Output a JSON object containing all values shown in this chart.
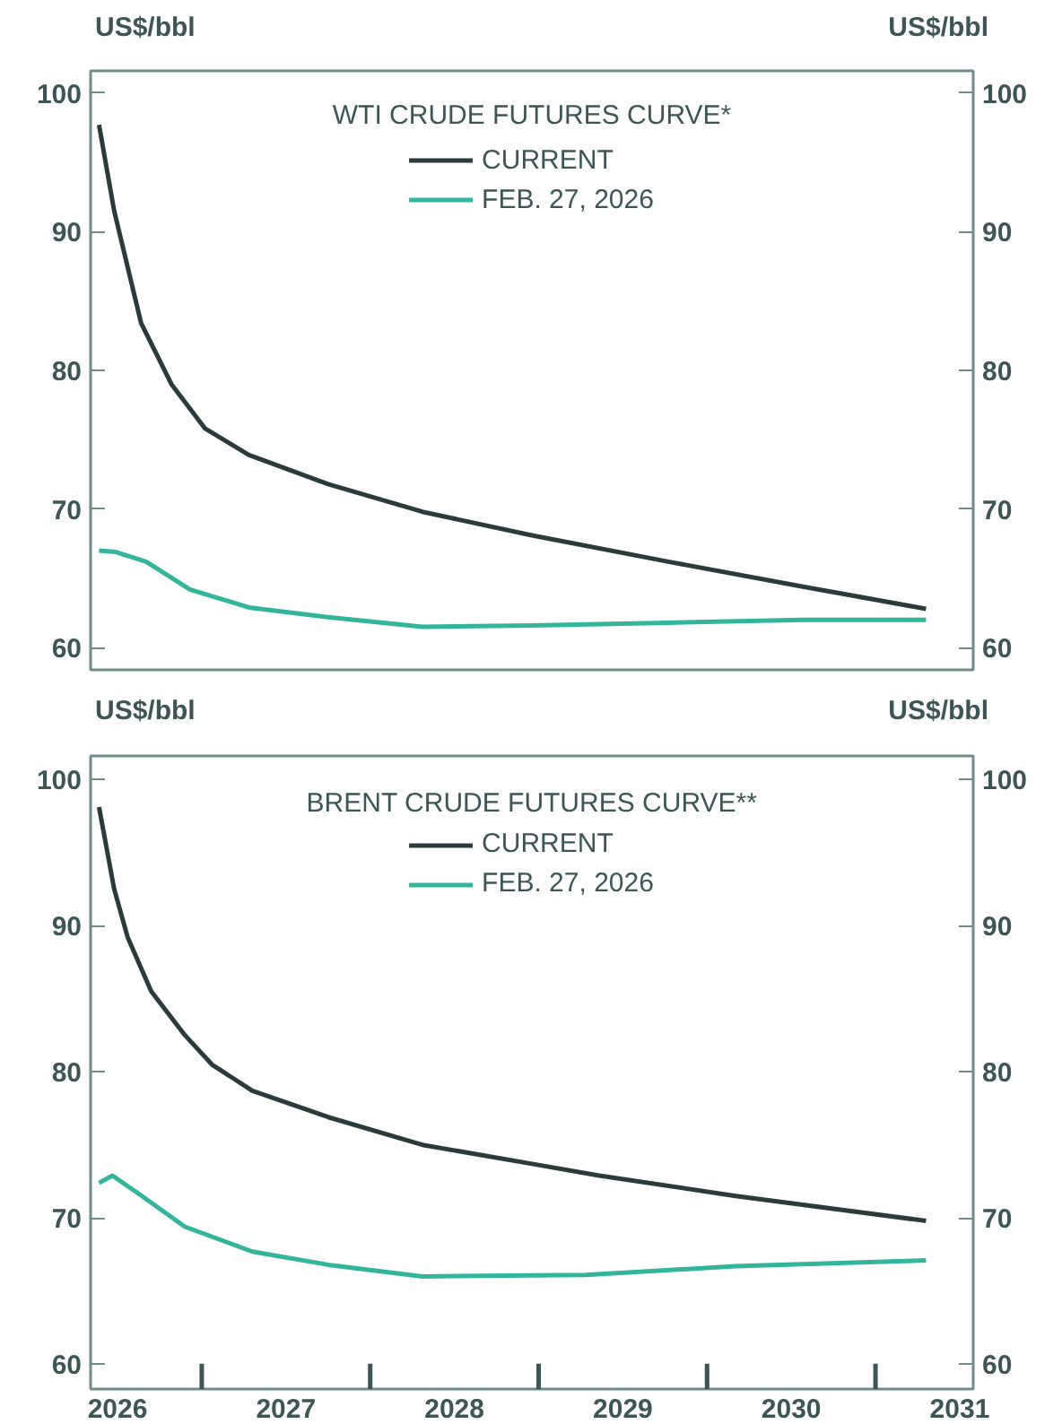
{
  "chart_data": [
    {
      "type": "line",
      "title": "WTI CRUDE FUTURES CURVE*",
      "ylabel": "US$/bbl",
      "y2label": "US$/bbl",
      "xlim": [
        2025.84,
        2031.08
      ],
      "ylim": [
        58.4,
        101.6
      ],
      "yticks": [
        60,
        70,
        80,
        90,
        100
      ],
      "y2lim": [
        58.4,
        101.6
      ],
      "y2ticks": [
        60,
        70,
        80,
        90,
        100
      ],
      "tick_labels": "y",
      "grid": false,
      "legend": "top",
      "line_style": "solid",
      "marker": "none",
      "series": [
        {
          "name": "CURRENT",
          "color": "#2b3a3a",
          "x": [
            2025.89,
            2025.98,
            2026.14,
            2026.32,
            2026.52,
            2026.78,
            2027.25,
            2027.81,
            2028.46,
            2029.27,
            2030.07,
            2030.8
          ],
          "values": [
            97.7,
            91.5,
            83.4,
            79.0,
            75.8,
            73.9,
            71.8,
            69.8,
            68.1,
            66.2,
            64.4,
            62.8
          ]
        },
        {
          "name": "FEB. 27, 2026",
          "color": "#33b59b",
          "x": [
            2025.89,
            2025.99,
            2026.17,
            2026.43,
            2026.78,
            2027.25,
            2027.81,
            2028.46,
            2029.27,
            2030.07,
            2030.8
          ],
          "values": [
            67.0,
            66.9,
            66.2,
            64.2,
            62.9,
            62.2,
            61.5,
            61.6,
            61.8,
            62.0,
            62.0
          ]
        }
      ]
    },
    {
      "type": "line",
      "title": "BRENT CRUDE FUTURES CURVE**",
      "ylabel": "US$/bbl",
      "y2label": "US$/bbl",
      "xlim": [
        2025.84,
        2031.08
      ],
      "xticks": [
        2026,
        {
          "value": 2026.5,
          "label": null
        },
        2027,
        {
          "value": 2027.5,
          "label": null
        },
        2028,
        {
          "value": 2028.5,
          "label": null
        },
        2029,
        {
          "value": 2029.5,
          "label": null
        },
        2030,
        {
          "value": 2030.5,
          "label": null
        },
        2031
      ],
      "ylim": [
        58.3,
        101.6
      ],
      "yticks": [
        60,
        70,
        80,
        90,
        100
      ],
      "y2lim": [
        58.3,
        101.6
      ],
      "y2ticks": [
        60,
        70,
        80,
        90,
        100
      ],
      "grid": false,
      "legend": "top",
      "line_style": "solid",
      "marker": "none",
      "series": [
        {
          "name": "CURRENT",
          "color": "#2b3a3a",
          "x": [
            2025.89,
            2025.98,
            2026.06,
            2026.2,
            2026.4,
            2026.56,
            2026.8,
            2027.25,
            2027.81,
            2028.46,
            2028.86,
            2029.67,
            2030.8
          ],
          "values": [
            98.1,
            92.5,
            89.2,
            85.5,
            82.5,
            80.5,
            78.7,
            76.9,
            75.0,
            73.7,
            72.9,
            71.5,
            69.8
          ]
        },
        {
          "name": "FEB. 27, 2026",
          "color": "#33b59b",
          "x": [
            2025.89,
            2025.97,
            2026.12,
            2026.4,
            2026.8,
            2027.25,
            2027.81,
            2028.78,
            2029.67,
            2030.8
          ],
          "values": [
            72.4,
            72.9,
            71.7,
            69.4,
            67.7,
            66.8,
            66.0,
            66.1,
            66.7,
            67.1
          ]
        }
      ]
    }
  ]
}
